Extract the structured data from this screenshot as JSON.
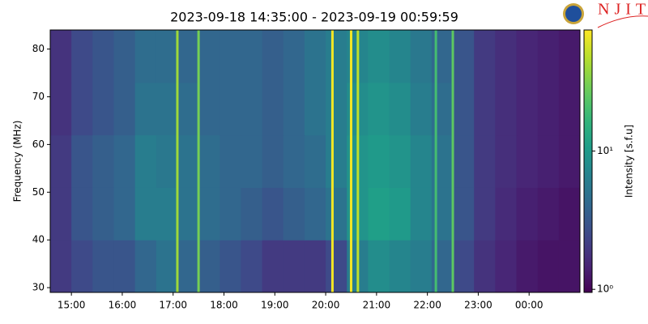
{
  "chart_data": {
    "type": "heatmap",
    "title": "2023-09-18 14:35:00 - 2023-09-19 00:59:59",
    "y_label": "Frequency (MHz)",
    "colorbar_label": "Intensity [s.f.u]",
    "logo_text": "NJIT",
    "xlim": [
      875,
      1500
    ],
    "ylim": [
      29,
      84
    ],
    "xticks": [
      {
        "value": 900,
        "label": "15:00"
      },
      {
        "value": 960,
        "label": "16:00"
      },
      {
        "value": 1020,
        "label": "17:00"
      },
      {
        "value": 1080,
        "label": "18:00"
      },
      {
        "value": 1140,
        "label": "19:00"
      },
      {
        "value": 1200,
        "label": "20:00"
      },
      {
        "value": 1260,
        "label": "21:00"
      },
      {
        "value": 1320,
        "label": "22:00"
      },
      {
        "value": 1380,
        "label": "23:00"
      },
      {
        "value": 1440,
        "label": "00:00"
      }
    ],
    "yticks": [
      30,
      40,
      50,
      60,
      70,
      80
    ],
    "xbins": [
      875,
      900,
      925,
      950,
      975,
      1000,
      1025,
      1050,
      1075,
      1100,
      1125,
      1150,
      1175,
      1200,
      1225,
      1250,
      1275,
      1300,
      1325,
      1350,
      1375,
      1400,
      1425,
      1450,
      1475,
      1500
    ],
    "ybins": [
      29,
      40,
      51,
      62,
      73,
      84
    ],
    "z": [
      [
        2,
        2.5,
        3,
        3,
        4,
        5,
        4,
        3.5,
        3,
        2.5,
        2,
        2,
        2,
        2.5,
        6,
        8,
        7,
        6,
        4,
        2.5,
        1.8,
        1.5,
        1.3,
        1.2,
        1.2
      ],
      [
        2,
        3,
        3.5,
        4,
        6,
        6,
        5,
        4.5,
        4,
        3.5,
        3,
        3.5,
        4,
        5,
        9,
        11,
        10,
        7,
        5,
        3,
        2,
        1.6,
        1.4,
        1.3,
        1.2
      ],
      [
        2,
        3,
        3.5,
        4,
        6,
        5.5,
        5,
        4.5,
        4,
        4,
        3.5,
        4,
        4.5,
        6,
        9,
        10,
        9,
        7,
        5,
        3,
        2,
        1.7,
        1.5,
        1.4,
        1.3
      ],
      [
        1.8,
        2.5,
        3,
        3.5,
        5,
        5,
        4.5,
        4,
        4,
        4,
        3.5,
        4,
        5,
        6,
        8,
        9,
        8,
        6,
        4.5,
        3,
        2,
        1.7,
        1.5,
        1.4,
        1.3
      ],
      [
        1.8,
        2.5,
        3,
        3.5,
        4.5,
        4.5,
        4,
        4,
        4,
        4,
        3.5,
        4,
        5,
        6,
        7,
        8,
        7,
        5.5,
        4,
        3,
        2,
        1.7,
        1.5,
        1.4,
        1.3
      ]
    ],
    "bursts_x": [
      1025,
      1050,
      1208,
      1230,
      1238,
      1330,
      1350
    ],
    "bursts_values": [
      40,
      30,
      70,
      70,
      50,
      20,
      25
    ],
    "log_color": true,
    "clim": [
      0.95,
      75
    ],
    "cticks": [
      {
        "value": 1,
        "label": "10⁰"
      },
      {
        "value": 10,
        "label": "10¹"
      }
    ]
  }
}
